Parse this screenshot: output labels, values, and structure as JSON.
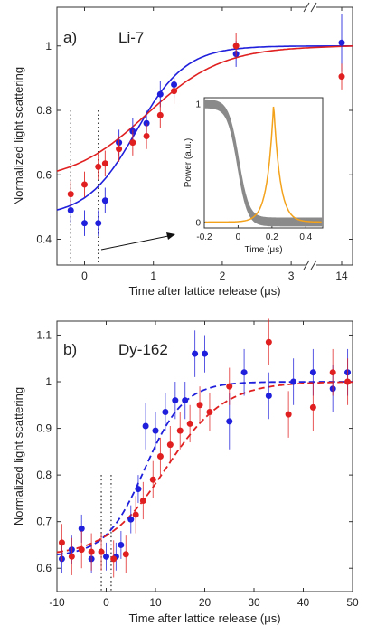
{
  "chart_data": [
    {
      "type": "scatter",
      "panel_label": "a)",
      "title": "Li-7",
      "xlabel": "Time after lattice release (μs)",
      "ylabel": "Normalized light scattering",
      "xlim": [
        -0.4,
        3.3
      ],
      "ylim": [
        0.32,
        1.12
      ],
      "x_ticks": [
        "0",
        "1",
        "2",
        "3",
        "14"
      ],
      "y_ticks": [
        "0.4",
        "0.6",
        "0.8",
        "1"
      ],
      "axis_break": "x-axis broken between 3 and 14",
      "vlines_dotted": [
        -0.2,
        0.2
      ],
      "colors": {
        "blue": "#1f1fdc",
        "red": "#e02020",
        "inset_gray": "#8a8a8a",
        "inset_orange": "#f3a21c"
      },
      "series": [
        {
          "color": "blue",
          "points": [
            {
              "x": -0.2,
              "y": 0.49,
              "err": 0.04
            },
            {
              "x": 0.0,
              "y": 0.45,
              "err": 0.04
            },
            {
              "x": 0.2,
              "y": 0.45,
              "err": 0.04
            },
            {
              "x": 0.3,
              "y": 0.52,
              "err": 0.04
            },
            {
              "x": 0.5,
              "y": 0.7,
              "err": 0.04
            },
            {
              "x": 0.7,
              "y": 0.735,
              "err": 0.04
            },
            {
              "x": 0.9,
              "y": 0.76,
              "err": 0.04
            },
            {
              "x": 1.1,
              "y": 0.85,
              "err": 0.04
            },
            {
              "x": 1.3,
              "y": 0.88,
              "err": 0.04
            },
            {
              "x": 2.2,
              "y": 0.975,
              "err": 0.04
            },
            {
              "x": 14,
              "y": 1.01,
              "err": 0.09
            }
          ],
          "fit": {
            "baseline": 0.47,
            "plateau": 1.0,
            "center": 0.75,
            "width": 0.36
          }
        },
        {
          "color": "red",
          "points": [
            {
              "x": -0.2,
              "y": 0.54,
              "err": 0.04
            },
            {
              "x": 0.0,
              "y": 0.57,
              "err": 0.04
            },
            {
              "x": 0.2,
              "y": 0.625,
              "err": 0.04
            },
            {
              "x": 0.3,
              "y": 0.635,
              "err": 0.04
            },
            {
              "x": 0.5,
              "y": 0.68,
              "err": 0.04
            },
            {
              "x": 0.7,
              "y": 0.7,
              "err": 0.04
            },
            {
              "x": 0.9,
              "y": 0.72,
              "err": 0.04
            },
            {
              "x": 1.1,
              "y": 0.785,
              "err": 0.04
            },
            {
              "x": 1.3,
              "y": 0.86,
              "err": 0.04
            },
            {
              "x": 2.2,
              "y": 1.0,
              "err": 0.04
            },
            {
              "x": 14,
              "y": 0.905,
              "err": 0.04
            }
          ],
          "fit": {
            "baseline": 0.575,
            "plateau": 1.0,
            "center": 0.9,
            "width": 0.55
          }
        }
      ],
      "inset": {
        "xlabel": "Time (μs)",
        "ylabel": "Power (a.u.)",
        "xlim": [
          -0.2,
          0.5
        ],
        "ylim": [
          -0.05,
          1.05
        ],
        "x_ticks": [
          "-0.2",
          "0",
          "0.2",
          "0.4"
        ],
        "y_ticks": [
          "0",
          "1"
        ],
        "gray_step": {
          "center": 0.0,
          "width": 0.03,
          "band": 0.03
        },
        "orange_peak": {
          "center": 0.21,
          "width": 0.06
        }
      }
    },
    {
      "type": "scatter",
      "panel_label": "b)",
      "title": "Dy-162",
      "xlabel": "Time after lattice release (μs)",
      "ylabel": "Normalized light scattering",
      "xlim": [
        -10,
        50
      ],
      "ylim": [
        0.55,
        1.13
      ],
      "x_ticks": [
        "-10",
        "0",
        "10",
        "20",
        "30",
        "40",
        "50"
      ],
      "y_ticks": [
        "0.6",
        "0.7",
        "0.8",
        "0.9",
        "1",
        "1.1"
      ],
      "vlines_dotted": [
        -1,
        1
      ],
      "series": [
        {
          "color": "blue",
          "points": [
            {
              "x": -9,
              "y": 0.62,
              "err": 0.03
            },
            {
              "x": -7,
              "y": 0.64,
              "err": 0.03
            },
            {
              "x": -5,
              "y": 0.685,
              "err": 0.03
            },
            {
              "x": -3,
              "y": 0.62,
              "err": 0.03
            },
            {
              "x": 0,
              "y": 0.625,
              "err": 0.03
            },
            {
              "x": 2,
              "y": 0.625,
              "err": 0.03
            },
            {
              "x": 3,
              "y": 0.65,
              "err": 0.03
            },
            {
              "x": 5,
              "y": 0.705,
              "err": 0.03
            },
            {
              "x": 6.5,
              "y": 0.77,
              "err": 0.03
            },
            {
              "x": 8,
              "y": 0.905,
              "err": 0.05
            },
            {
              "x": 10,
              "y": 0.895,
              "err": 0.04
            },
            {
              "x": 12,
              "y": 0.935,
              "err": 0.04
            },
            {
              "x": 14,
              "y": 0.96,
              "err": 0.04
            },
            {
              "x": 16,
              "y": 0.96,
              "err": 0.04
            },
            {
              "x": 18,
              "y": 1.06,
              "err": 0.05
            },
            {
              "x": 20,
              "y": 1.06,
              "err": 0.04
            },
            {
              "x": 25,
              "y": 0.915,
              "err": 0.06
            },
            {
              "x": 28,
              "y": 1.02,
              "err": 0.05
            },
            {
              "x": 33,
              "y": 0.97,
              "err": 0.05
            },
            {
              "x": 38,
              "y": 1.0,
              "err": 0.05
            },
            {
              "x": 42,
              "y": 1.02,
              "err": 0.05
            },
            {
              "x": 46,
              "y": 0.985,
              "err": 0.05
            },
            {
              "x": 49,
              "y": 1.02,
              "err": 0.05
            }
          ],
          "fit": {
            "baseline": 0.625,
            "plateau": 1.0,
            "center": 7.8,
            "width": 4.0
          }
        },
        {
          "color": "red",
          "points": [
            {
              "x": -9,
              "y": 0.655,
              "err": 0.04
            },
            {
              "x": -7,
              "y": 0.625,
              "err": 0.04
            },
            {
              "x": -5,
              "y": 0.64,
              "err": 0.04
            },
            {
              "x": -3,
              "y": 0.635,
              "err": 0.04
            },
            {
              "x": -1,
              "y": 0.635,
              "err": 0.04
            },
            {
              "x": 1.5,
              "y": 0.62,
              "err": 0.04
            },
            {
              "x": 4,
              "y": 0.63,
              "err": 0.04
            },
            {
              "x": 6,
              "y": 0.715,
              "err": 0.04
            },
            {
              "x": 7.5,
              "y": 0.745,
              "err": 0.04
            },
            {
              "x": 9.5,
              "y": 0.79,
              "err": 0.04
            },
            {
              "x": 11,
              "y": 0.84,
              "err": 0.04
            },
            {
              "x": 13,
              "y": 0.865,
              "err": 0.04
            },
            {
              "x": 15,
              "y": 0.895,
              "err": 0.04
            },
            {
              "x": 17,
              "y": 0.91,
              "err": 0.04
            },
            {
              "x": 19,
              "y": 0.95,
              "err": 0.04
            },
            {
              "x": 21,
              "y": 0.935,
              "err": 0.04
            },
            {
              "x": 25,
              "y": 0.99,
              "err": 0.04
            },
            {
              "x": 33,
              "y": 1.085,
              "err": 0.05
            },
            {
              "x": 37,
              "y": 0.93,
              "err": 0.05
            },
            {
              "x": 42,
              "y": 0.945,
              "err": 0.05
            },
            {
              "x": 46,
              "y": 1.02,
              "err": 0.05
            },
            {
              "x": 49,
              "y": 1.0,
              "err": 0.05
            }
          ],
          "fit": {
            "baseline": 0.625,
            "plateau": 1.0,
            "center": 12.0,
            "width": 6.0
          }
        }
      ]
    }
  ]
}
